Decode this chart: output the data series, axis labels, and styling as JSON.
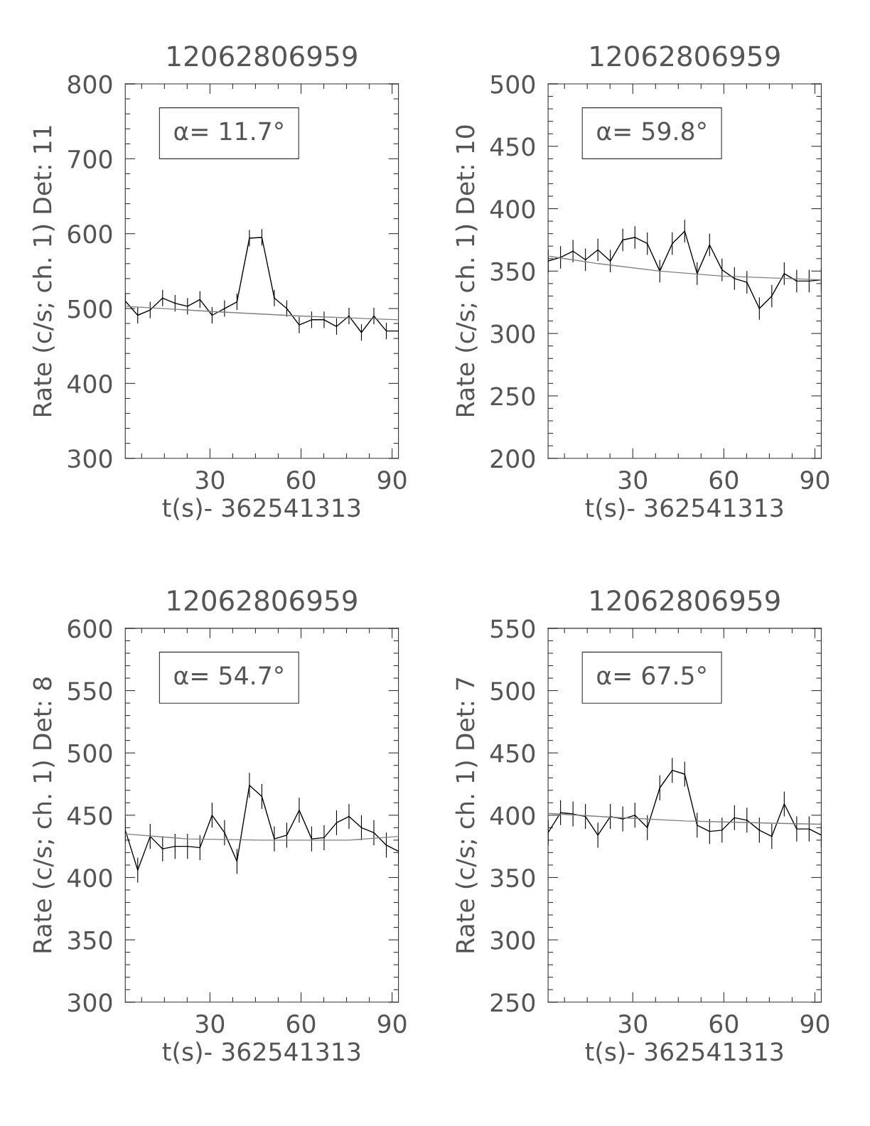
{
  "chart_data": [
    {
      "type": "line",
      "title": "12062806959",
      "xlabel": "t(s)- 362541313",
      "ylabel": "Rate (c/s; ch. 1) Det: 11",
      "annotations": [
        "α= 11.7°"
      ],
      "xlim": [
        2.1,
        92.1
      ],
      "xticks": [
        {
          "value": 7.5,
          "label": null
        },
        {
          "value": 15,
          "label": null
        },
        {
          "value": 22.5,
          "label": null
        },
        30,
        {
          "value": 37.5,
          "label": null
        },
        {
          "value": 45,
          "label": null
        },
        {
          "value": 52.5,
          "label": null
        },
        60,
        {
          "value": 67.5,
          "label": null
        },
        {
          "value": 75,
          "label": null
        },
        {
          "value": 82.5,
          "label": null
        },
        90
      ],
      "ylim": [
        300,
        800
      ],
      "yticks": [
        300,
        {
          "value": 320,
          "label": null
        },
        {
          "value": 340,
          "label": null
        },
        {
          "value": 360,
          "label": null
        },
        {
          "value": 380,
          "label": null
        },
        400,
        {
          "value": 420,
          "label": null
        },
        {
          "value": 440,
          "label": null
        },
        {
          "value": 460,
          "label": null
        },
        {
          "value": 480,
          "label": null
        },
        500,
        {
          "value": 520,
          "label": null
        },
        {
          "value": 540,
          "label": null
        },
        {
          "value": 560,
          "label": null
        },
        {
          "value": 580,
          "label": null
        },
        600,
        {
          "value": 620,
          "label": null
        },
        {
          "value": 640,
          "label": null
        },
        {
          "value": 660,
          "label": null
        },
        {
          "value": 680,
          "label": null
        },
        700,
        {
          "value": 720,
          "label": null
        },
        {
          "value": 740,
          "label": null
        },
        {
          "value": 760,
          "label": null
        },
        {
          "value": 780,
          "label": null
        },
        800
      ],
      "series": [
        {
          "color": "#000000",
          "x": [
            2.1,
            6.2,
            10.3,
            14.4,
            18.5,
            22.6,
            26.7,
            30.7,
            34.8,
            38.9,
            43.0,
            47.1,
            51.2,
            55.3,
            59.4,
            63.5,
            67.6,
            71.7,
            75.8,
            79.9,
            84.0,
            88.1,
            92.1
          ],
          "values": [
            510,
            491,
            498,
            514,
            507,
            503,
            512,
            491,
            500,
            509,
            594,
            595,
            514,
            500,
            478,
            485,
            485,
            476,
            490,
            468,
            490,
            470,
            470
          ],
          "errors": [
            11,
            11,
            11,
            11,
            11,
            11,
            11,
            11,
            11,
            11,
            11,
            11,
            11,
            11,
            11,
            11,
            11,
            11,
            11,
            11,
            11,
            11,
            11
          ]
        },
        {
          "color": "#808080",
          "x": [
            2.1,
            30.7,
            59.4,
            92.1
          ],
          "values": [
            503,
            496,
            490,
            485
          ]
        }
      ]
    },
    {
      "type": "line",
      "title": "12062806959",
      "xlabel": "t(s)- 362541313",
      "ylabel": "Rate (c/s; ch. 1) Det: 10",
      "annotations": [
        "α= 59.8°"
      ],
      "xlim": [
        2.1,
        92.1
      ],
      "xticks": [
        {
          "value": 7.5,
          "label": null
        },
        {
          "value": 15,
          "label": null
        },
        {
          "value": 22.5,
          "label": null
        },
        30,
        {
          "value": 37.5,
          "label": null
        },
        {
          "value": 45,
          "label": null
        },
        {
          "value": 52.5,
          "label": null
        },
        60,
        {
          "value": 67.5,
          "label": null
        },
        {
          "value": 75,
          "label": null
        },
        {
          "value": 82.5,
          "label": null
        },
        90
      ],
      "ylim": [
        200,
        500
      ],
      "yticks": [
        200,
        {
          "value": 210,
          "label": null
        },
        {
          "value": 220,
          "label": null
        },
        {
          "value": 230,
          "label": null
        },
        {
          "value": 240,
          "label": null
        },
        250,
        {
          "value": 260,
          "label": null
        },
        {
          "value": 270,
          "label": null
        },
        {
          "value": 280,
          "label": null
        },
        {
          "value": 290,
          "label": null
        },
        300,
        {
          "value": 310,
          "label": null
        },
        {
          "value": 320,
          "label": null
        },
        {
          "value": 330,
          "label": null
        },
        {
          "value": 340,
          "label": null
        },
        350,
        {
          "value": 360,
          "label": null
        },
        {
          "value": 370,
          "label": null
        },
        {
          "value": 380,
          "label": null
        },
        {
          "value": 390,
          "label": null
        },
        400,
        {
          "value": 410,
          "label": null
        },
        {
          "value": 420,
          "label": null
        },
        {
          "value": 430,
          "label": null
        },
        {
          "value": 440,
          "label": null
        },
        450,
        {
          "value": 460,
          "label": null
        },
        {
          "value": 470,
          "label": null
        },
        {
          "value": 480,
          "label": null
        },
        {
          "value": 490,
          "label": null
        },
        500
      ],
      "series": [
        {
          "color": "#000000",
          "x": [
            2.1,
            6.2,
            10.3,
            14.4,
            18.5,
            22.6,
            26.7,
            30.7,
            34.8,
            38.9,
            43.0,
            47.1,
            51.2,
            55.3,
            59.4,
            63.5,
            67.6,
            71.7,
            75.8,
            79.9,
            84.0,
            88.1,
            92.1
          ],
          "values": [
            358,
            361,
            366,
            359,
            367,
            358,
            375,
            377,
            372,
            350,
            372,
            382,
            348,
            371,
            351,
            344,
            341,
            320,
            330,
            348,
            342,
            342,
            343
          ],
          "errors": [
            9,
            9,
            9,
            9,
            9,
            9,
            9,
            9,
            9,
            9,
            9,
            9,
            9,
            9,
            9,
            9,
            9,
            9,
            9,
            9,
            9,
            9,
            9
          ]
        },
        {
          "color": "#808080",
          "x": [
            2.1,
            18.5,
            38.9,
            59.4,
            92.1
          ],
          "values": [
            362,
            356,
            350,
            346,
            343
          ]
        }
      ]
    },
    {
      "type": "line",
      "title": "12062806959",
      "xlabel": "t(s)- 362541313",
      "ylabel": "Rate (c/s; ch. 1) Det: 8",
      "annotations": [
        "α= 54.7°"
      ],
      "xlim": [
        2.1,
        92.1
      ],
      "xticks": [
        {
          "value": 7.5,
          "label": null
        },
        {
          "value": 15,
          "label": null
        },
        {
          "value": 22.5,
          "label": null
        },
        30,
        {
          "value": 37.5,
          "label": null
        },
        {
          "value": 45,
          "label": null
        },
        {
          "value": 52.5,
          "label": null
        },
        60,
        {
          "value": 67.5,
          "label": null
        },
        {
          "value": 75,
          "label": null
        },
        {
          "value": 82.5,
          "label": null
        },
        90
      ],
      "ylim": [
        300,
        600
      ],
      "yticks": [
        300,
        {
          "value": 310,
          "label": null
        },
        {
          "value": 320,
          "label": null
        },
        {
          "value": 330,
          "label": null
        },
        {
          "value": 340,
          "label": null
        },
        350,
        {
          "value": 360,
          "label": null
        },
        {
          "value": 370,
          "label": null
        },
        {
          "value": 380,
          "label": null
        },
        {
          "value": 390,
          "label": null
        },
        400,
        {
          "value": 410,
          "label": null
        },
        {
          "value": 420,
          "label": null
        },
        {
          "value": 430,
          "label": null
        },
        {
          "value": 440,
          "label": null
        },
        450,
        {
          "value": 460,
          "label": null
        },
        {
          "value": 470,
          "label": null
        },
        {
          "value": 480,
          "label": null
        },
        {
          "value": 490,
          "label": null
        },
        500,
        {
          "value": 510,
          "label": null
        },
        {
          "value": 520,
          "label": null
        },
        {
          "value": 530,
          "label": null
        },
        {
          "value": 540,
          "label": null
        },
        550,
        {
          "value": 560,
          "label": null
        },
        {
          "value": 570,
          "label": null
        },
        {
          "value": 580,
          "label": null
        },
        {
          "value": 590,
          "label": null
        },
        600
      ],
      "series": [
        {
          "color": "#000000",
          "x": [
            2.1,
            6.2,
            10.3,
            14.4,
            18.5,
            22.6,
            26.7,
            30.7,
            34.8,
            38.9,
            43.0,
            47.1,
            51.2,
            55.3,
            59.4,
            63.5,
            67.6,
            71.7,
            75.8,
            79.9,
            84.0,
            88.1,
            92.1
          ],
          "values": [
            438,
            406,
            433,
            423,
            425,
            425,
            424,
            450,
            436,
            413,
            474,
            465,
            431,
            434,
            454,
            431,
            432,
            444,
            449,
            440,
            436,
            426,
            421
          ],
          "errors": [
            10,
            10,
            10,
            10,
            10,
            10,
            10,
            10,
            10,
            10,
            10,
            10,
            10,
            10,
            10,
            10,
            10,
            10,
            10,
            10,
            10,
            10,
            10
          ]
        },
        {
          "color": "#808080",
          "x": [
            2.1,
            22.6,
            47.1,
            75.8,
            92.1
          ],
          "values": [
            435,
            431,
            430,
            430,
            433
          ]
        }
      ]
    },
    {
      "type": "line",
      "title": "12062806959",
      "xlabel": "t(s)- 362541313",
      "ylabel": "Rate (c/s; ch. 1) Det: 7",
      "annotations": [
        "α= 67.5°"
      ],
      "xlim": [
        2.1,
        92.1
      ],
      "xticks": [
        {
          "value": 7.5,
          "label": null
        },
        {
          "value": 15,
          "label": null
        },
        {
          "value": 22.5,
          "label": null
        },
        30,
        {
          "value": 37.5,
          "label": null
        },
        {
          "value": 45,
          "label": null
        },
        {
          "value": 52.5,
          "label": null
        },
        60,
        {
          "value": 67.5,
          "label": null
        },
        {
          "value": 75,
          "label": null
        },
        {
          "value": 82.5,
          "label": null
        },
        90
      ],
      "ylim": [
        250,
        550
      ],
      "yticks": [
        250,
        {
          "value": 260,
          "label": null
        },
        {
          "value": 270,
          "label": null
        },
        {
          "value": 280,
          "label": null
        },
        {
          "value": 290,
          "label": null
        },
        300,
        {
          "value": 310,
          "label": null
        },
        {
          "value": 320,
          "label": null
        },
        {
          "value": 330,
          "label": null
        },
        {
          "value": 340,
          "label": null
        },
        350,
        {
          "value": 360,
          "label": null
        },
        {
          "value": 370,
          "label": null
        },
        {
          "value": 380,
          "label": null
        },
        {
          "value": 390,
          "label": null
        },
        400,
        {
          "value": 410,
          "label": null
        },
        {
          "value": 420,
          "label": null
        },
        {
          "value": 430,
          "label": null
        },
        {
          "value": 440,
          "label": null
        },
        450,
        {
          "value": 460,
          "label": null
        },
        {
          "value": 470,
          "label": null
        },
        {
          "value": 480,
          "label": null
        },
        {
          "value": 490,
          "label": null
        },
        500,
        {
          "value": 510,
          "label": null
        },
        {
          "value": 520,
          "label": null
        },
        {
          "value": 530,
          "label": null
        },
        {
          "value": 540,
          "label": null
        },
        550
      ],
      "series": [
        {
          "color": "#000000",
          "x": [
            2.1,
            6.2,
            10.3,
            14.4,
            18.5,
            22.6,
            26.7,
            30.7,
            34.8,
            38.9,
            43.0,
            47.1,
            51.2,
            55.3,
            59.4,
            63.5,
            67.6,
            71.7,
            75.8,
            79.9,
            84.0,
            88.1,
            92.1
          ],
          "values": [
            386,
            402,
            401,
            399,
            384,
            399,
            397,
            400,
            390,
            422,
            436,
            433,
            392,
            387,
            388,
            398,
            396,
            388,
            383,
            409,
            389,
            389,
            384
          ],
          "errors": [
            10,
            10,
            10,
            10,
            10,
            10,
            10,
            10,
            10,
            10,
            10,
            10,
            10,
            10,
            10,
            10,
            10,
            10,
            10,
            10,
            10,
            10,
            10
          ]
        },
        {
          "color": "#808080",
          "x": [
            2.1,
            22.6,
            47.1,
            75.8,
            92.1
          ],
          "values": [
            401.5,
            398.5,
            395.4,
            393.6,
            392.8
          ]
        }
      ]
    }
  ]
}
